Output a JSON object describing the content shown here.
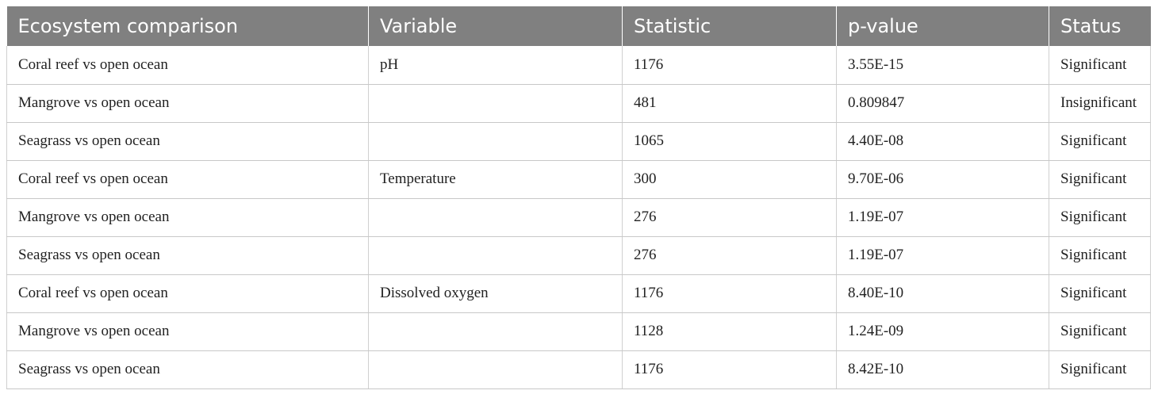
{
  "table": {
    "headers": [
      "Ecosystem comparison",
      "Variable",
      "Statistic",
      "p-value",
      "Status"
    ],
    "rows": [
      [
        "Coral reef vs open ocean",
        "pH",
        "1176",
        "3.55E-15",
        "Significant"
      ],
      [
        "Mangrove vs open ocean",
        "",
        "481",
        "0.809847",
        "Insignificant"
      ],
      [
        "Seagrass vs open ocean",
        "",
        "1065",
        "4.40E-08",
        "Significant"
      ],
      [
        "Coral reef vs open ocean",
        "Temperature",
        "300",
        "9.70E-06",
        "Significant"
      ],
      [
        "Mangrove vs open ocean",
        "",
        "276",
        "1.19E-07",
        "Significant"
      ],
      [
        "Seagrass vs open ocean",
        "",
        "276",
        "1.19E-07",
        "Significant"
      ],
      [
        "Coral reef vs open ocean",
        "Dissolved oxygen",
        "1176",
        "8.40E-10",
        "Significant"
      ],
      [
        "Mangrove vs open ocean",
        "",
        "1128",
        "1.24E-09",
        "Significant"
      ],
      [
        "Seagrass vs open ocean",
        "",
        "1176",
        "8.42E-10",
        "Significant"
      ]
    ]
  },
  "colors": {
    "header_bg": "#808080",
    "header_text": "#ffffff",
    "grid": "#c8c8c8"
  }
}
